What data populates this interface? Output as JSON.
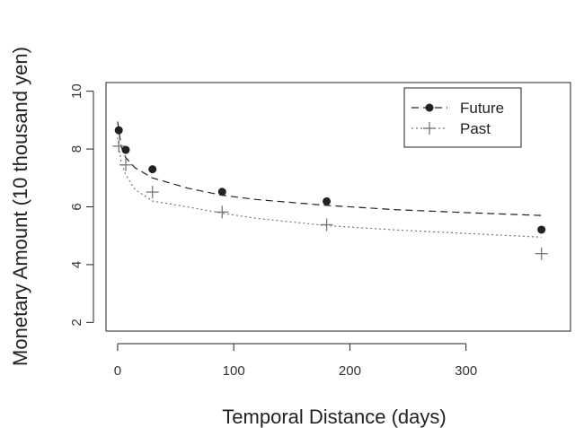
{
  "chart_data": {
    "type": "scatter",
    "xlabel": "Temporal Distance (days)",
    "ylabel": "Monetary Amount (10 thousand yen)",
    "xlim": [
      -10,
      390
    ],
    "ylim": [
      1.7,
      10.3
    ],
    "xticks": [
      0,
      100,
      200,
      300
    ],
    "yticks": [
      2,
      4,
      6,
      8,
      10
    ],
    "xtick_labels": [
      "0",
      "100",
      "200",
      "300"
    ],
    "ytick_labels": [
      "2",
      "4",
      "6",
      "8",
      "10"
    ],
    "grid": false,
    "legend_position": "top-right",
    "series": [
      {
        "name": "Future",
        "marker": "filled-circle",
        "color": "#222222",
        "x": [
          1,
          7,
          30,
          90,
          180,
          365
        ],
        "y": [
          8.65,
          7.97,
          7.3,
          6.52,
          6.19,
          5.21
        ],
        "fit_line": "dashed",
        "fit_x": [
          0,
          3,
          7,
          15,
          30,
          60,
          90,
          120,
          180,
          240,
          300,
          365
        ],
        "fit_y": [
          8.95,
          8.1,
          7.7,
          7.35,
          7.0,
          6.65,
          6.4,
          6.25,
          6.05,
          5.9,
          5.8,
          5.7
        ]
      },
      {
        "name": "Past",
        "marker": "plus",
        "color": "#777777",
        "x": [
          1,
          7,
          30,
          90,
          180,
          365
        ],
        "y": [
          8.1,
          7.45,
          6.51,
          5.82,
          5.38,
          4.38
        ],
        "fit_line": "dotted",
        "fit_x": [
          0,
          3,
          7,
          15,
          30,
          60,
          90,
          120,
          180,
          240,
          300,
          365
        ],
        "fit_y": [
          8.4,
          7.55,
          7.1,
          6.6,
          6.2,
          6.0,
          5.78,
          5.6,
          5.35,
          5.2,
          5.08,
          4.95
        ]
      }
    ]
  }
}
